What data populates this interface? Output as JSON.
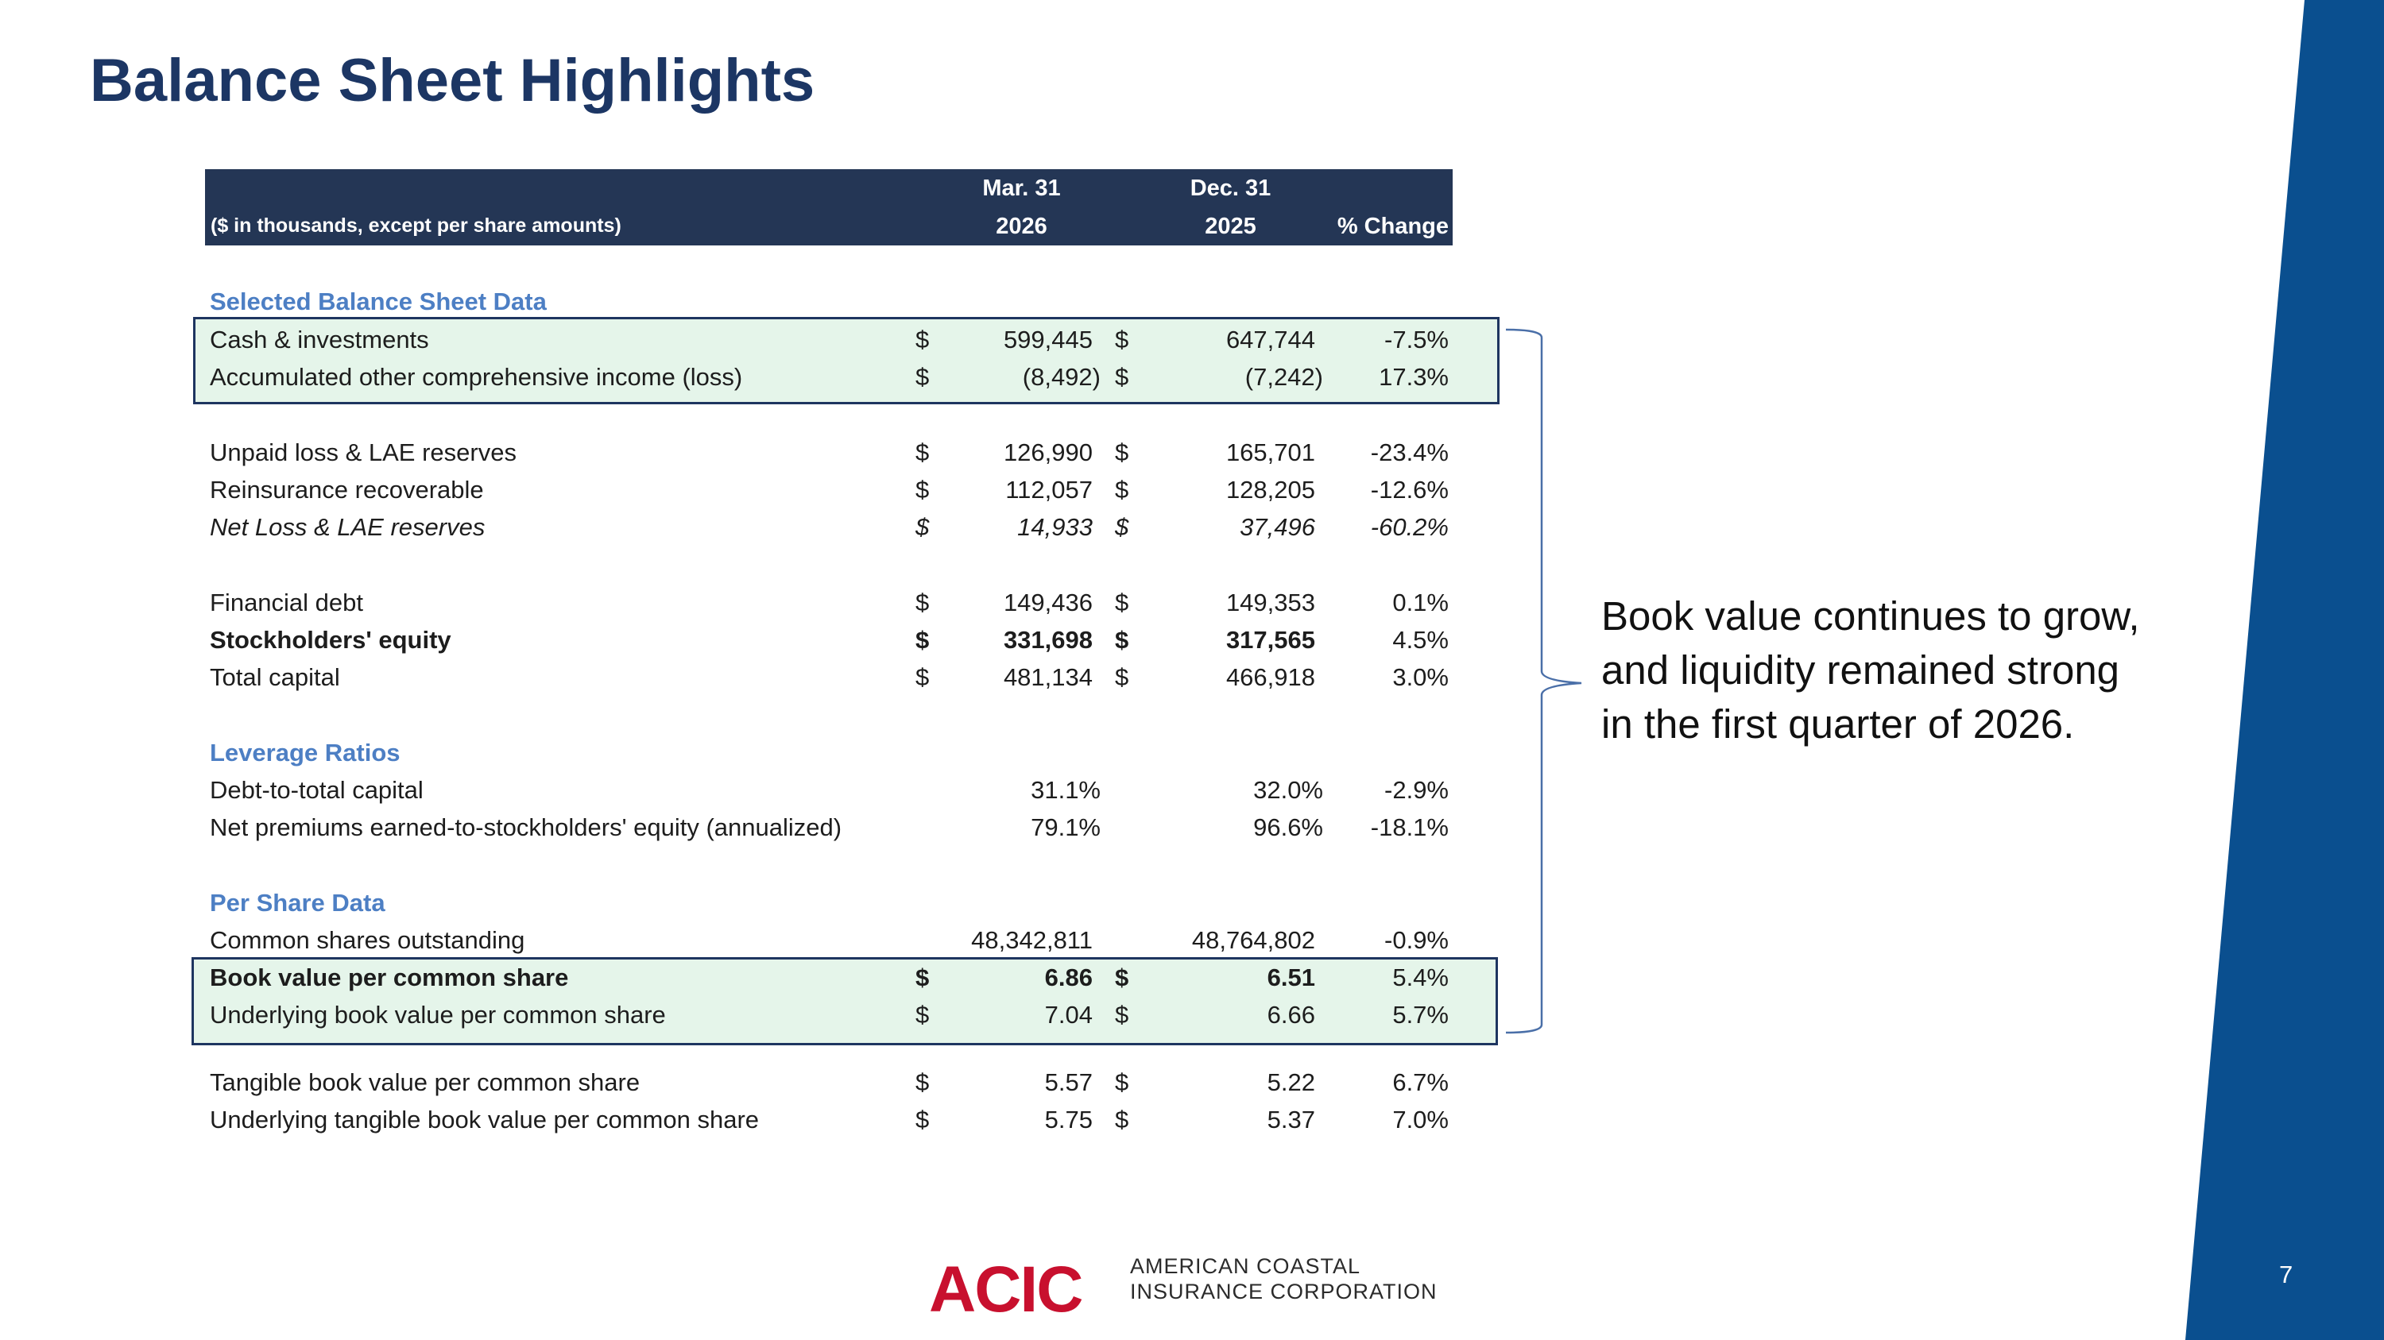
{
  "title": "Balance Sheet Highlights",
  "colors": {
    "title": "#1c3664",
    "header_bg": "#243655",
    "section": "#4d7fc4",
    "highlight": "#e5f5ea",
    "band": "#0a4f8f",
    "logo_red": "#c8102e"
  },
  "table": {
    "header": {
      "label": "($ in thousands, except per share amounts)",
      "col1_line1": "Mar. 31",
      "col1_line2": "2026",
      "col2_line1": "Dec. 31",
      "col2_line2": "2025",
      "change": "% Change"
    },
    "sections": [
      {
        "title": "Selected Balance Sheet Data"
      },
      {
        "title": "Leverage Ratios"
      },
      {
        "title": "Per Share Data"
      }
    ],
    "rows": [
      {
        "label": "Cash & investments",
        "cur1": "$",
        "v1": "599,445",
        "cur2": "$",
        "v2": "647,744",
        "chg": "-7.5%"
      },
      {
        "label": "Accumulated other comprehensive income (loss)",
        "cur1": "$",
        "v1": "(8,492)",
        "cur2": "$",
        "v2": "(7,242)",
        "chg": "17.3%"
      },
      {
        "label": "Unpaid loss & LAE reserves",
        "cur1": "$",
        "v1": "126,990",
        "cur2": "$",
        "v2": "165,701",
        "chg": "-23.4%"
      },
      {
        "label": "Reinsurance recoverable",
        "cur1": "$",
        "v1": "112,057",
        "cur2": "$",
        "v2": "128,205",
        "chg": "-12.6%"
      },
      {
        "label": "Net Loss & LAE reserves",
        "cur1": "$",
        "v1": "14,933",
        "cur2": "$",
        "v2": "37,496",
        "chg": "-60.2%"
      },
      {
        "label": "Financial debt",
        "cur1": "$",
        "v1": "149,436",
        "cur2": "$",
        "v2": "149,353",
        "chg": "0.1%"
      },
      {
        "label": "Stockholders' equity",
        "cur1": "$",
        "v1": "331,698",
        "cur2": "$",
        "v2": "317,565",
        "chg": "4.5%"
      },
      {
        "label": "Total capital",
        "cur1": "$",
        "v1": "481,134",
        "cur2": "$",
        "v2": "466,918",
        "chg": "3.0%"
      },
      {
        "label": "Debt-to-total capital",
        "cur1": "",
        "v1": "31.1%",
        "cur2": "",
        "v2": "32.0%",
        "chg": "-2.9%"
      },
      {
        "label": "Net premiums earned-to-stockholders' equity (annualized)",
        "cur1": "",
        "v1": "79.1%",
        "cur2": "",
        "v2": "96.6%",
        "chg": "-18.1%"
      },
      {
        "label": "Common shares outstanding",
        "cur1": "",
        "v1": "48,342,811",
        "cur2": "",
        "v2": "48,764,802",
        "chg": "-0.9%"
      },
      {
        "label": "Book value per common share",
        "cur1": "$",
        "v1": "6.86",
        "cur2": "$",
        "v2": "6.51",
        "chg": "5.4%"
      },
      {
        "label": "Underlying book value per common share",
        "cur1": "$",
        "v1": "7.04",
        "cur2": "$",
        "v2": "6.66",
        "chg": "5.7%"
      },
      {
        "label": "Tangible book value per common share",
        "cur1": "$",
        "v1": "5.57",
        "cur2": "$",
        "v2": "5.22",
        "chg": "6.7%"
      },
      {
        "label": "Underlying tangible book value per common share",
        "cur1": "$",
        "v1": "5.75",
        "cur2": "$",
        "v2": "5.37",
        "chg": "7.0%"
      }
    ]
  },
  "callout": {
    "line1": "Book value continues to grow,",
    "line2": "and liquidity remained strong",
    "line3": "in the first quarter of 2026."
  },
  "logo": {
    "mark": "ACIC",
    "line1": "AMERICAN COASTAL",
    "line2": "INSURANCE CORPORATION"
  },
  "page_number": "7"
}
